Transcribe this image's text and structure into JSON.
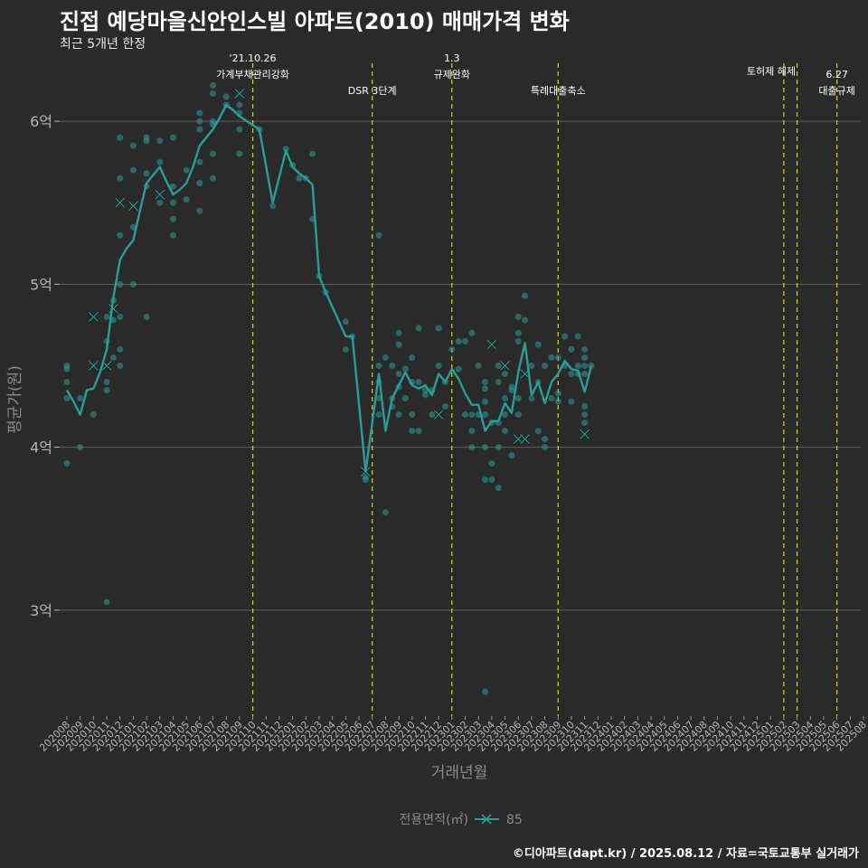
{
  "title": "진접 예당마을신안인스빌 아파트(2010) 매매가격 변화",
  "subtitle": "최근 5개년 한정",
  "caption": "©디아파트(dapt.kr) / 2025.08.12 / 자료=국토교통부 실거래가",
  "colors": {
    "background": "#2b2a2b",
    "series": "#2a9d99",
    "event_line": "#d8d800",
    "grid": "#5e5e5e",
    "axis_text": "#b5b5b5",
    "label_text": "#8a8a8a"
  },
  "chart_data": {
    "type": "line",
    "xlabel": "거래년월",
    "ylabel": "평균가(원)",
    "y_unit": "억",
    "ylim": [
      2.35,
      6.4
    ],
    "yticks": [
      3,
      4,
      5,
      6
    ],
    "ytick_labels": [
      "3억",
      "4억",
      "5억",
      "6억"
    ],
    "grid": true,
    "legend": {
      "title": "전용면적(㎡)",
      "entries": [
        "85"
      ],
      "position": "bottom"
    },
    "x": [
      "202008",
      "202009",
      "202010",
      "202011",
      "202012",
      "202101",
      "202102",
      "202103",
      "202104",
      "202105",
      "202106",
      "202107",
      "202108",
      "202109",
      "202110",
      "202111",
      "202112",
      "202201",
      "202202",
      "202203",
      "202204",
      "202205",
      "202206",
      "202207",
      "202208",
      "202209",
      "202210",
      "202211",
      "202212",
      "202301",
      "202302",
      "202303",
      "202304",
      "202305",
      "202306",
      "202307",
      "202308",
      "202309",
      "202310",
      "202311",
      "202312",
      "202401",
      "202402",
      "202403",
      "202404",
      "202405",
      "202406",
      "202407",
      "202408",
      "202409",
      "202410",
      "202411",
      "202412",
      "202501",
      "202502",
      "202503",
      "202504",
      "202505",
      "202506",
      "202507",
      "202508"
    ],
    "series": [
      {
        "name": "85",
        "average": [
          [
            "202008",
            4.35
          ],
          [
            "202008.5",
            4.28
          ],
          [
            "202009",
            4.2
          ],
          [
            "202009.5",
            4.35
          ],
          [
            "202010",
            4.36
          ],
          [
            "202010.5",
            4.46
          ],
          [
            "202011",
            4.6
          ],
          [
            "202011.5",
            4.92
          ],
          [
            "202012",
            5.15
          ],
          [
            "202012.5",
            5.22
          ],
          [
            "202101",
            5.27
          ],
          [
            "202101.5",
            5.45
          ],
          [
            "202102",
            5.62
          ],
          [
            "202102.5",
            5.67
          ],
          [
            "202103",
            5.72
          ],
          [
            "202103.5",
            5.63
          ],
          [
            "202104",
            5.55
          ],
          [
            "202104.5",
            5.58
          ],
          [
            "202105",
            5.62
          ],
          [
            "202105.5",
            5.72
          ],
          [
            "202106",
            5.85
          ],
          [
            "202106.5",
            5.9
          ],
          [
            "202107",
            5.95
          ],
          [
            "202107.5",
            6.02
          ],
          [
            "202108",
            6.1
          ],
          [
            "202108.5",
            6.07
          ],
          [
            "202109",
            6.03
          ],
          [
            "202110.5",
            5.95
          ],
          [
            "202111.5",
            5.5
          ],
          [
            "202112.5",
            5.82
          ],
          [
            "202201",
            5.72
          ],
          [
            "202201.5",
            5.68
          ],
          [
            "202202",
            5.65
          ],
          [
            "202202.5",
            5.61
          ],
          [
            "202203",
            5.05
          ],
          [
            "202203.5",
            4.95
          ],
          [
            "202205",
            4.68
          ],
          [
            "202205.5",
            4.68
          ],
          [
            "202206.5",
            3.85
          ],
          [
            "202207.5",
            4.45
          ],
          [
            "202208",
            4.1
          ],
          [
            "202208.5",
            4.3
          ],
          [
            "202209",
            4.38
          ],
          [
            "202209.5",
            4.46
          ],
          [
            "202210",
            4.38
          ],
          [
            "202210.5",
            4.36
          ],
          [
            "202211",
            4.38
          ],
          [
            "202211.5",
            4.32
          ],
          [
            "202212",
            4.45
          ],
          [
            "202212.5",
            4.4
          ],
          [
            "202301",
            4.48
          ],
          [
            "202301.5",
            4.42
          ],
          [
            "202302",
            4.33
          ],
          [
            "202302.5",
            4.26
          ],
          [
            "202303",
            4.26
          ],
          [
            "202303.5",
            4.1
          ],
          [
            "202304",
            4.16
          ],
          [
            "202304.5",
            4.16
          ],
          [
            "202305",
            4.27
          ],
          [
            "202305.5",
            4.21
          ],
          [
            "202306",
            4.46
          ],
          [
            "202306.5",
            4.64
          ],
          [
            "202307",
            4.32
          ],
          [
            "202307.5",
            4.4
          ],
          [
            "202308",
            4.27
          ],
          [
            "202308.5",
            4.4
          ],
          [
            "202309",
            4.45
          ],
          [
            "202309.5",
            4.53
          ],
          [
            "202310",
            4.48
          ],
          [
            "202310.5",
            4.47
          ],
          [
            "202311",
            4.34
          ],
          [
            "202311.5",
            4.5
          ]
        ],
        "transactions": [
          [
            "202008",
            4.5
          ],
          [
            "202008",
            4.48
          ],
          [
            "202008",
            4.4
          ],
          [
            "202008",
            4.3
          ],
          [
            "202008",
            3.9
          ],
          [
            "202009",
            4.3
          ],
          [
            "202009",
            4.0
          ],
          [
            "202010",
            4.5,
            "x"
          ],
          [
            "202010",
            4.8,
            "x"
          ],
          [
            "202010",
            4.2
          ],
          [
            "202011",
            4.5,
            "x"
          ],
          [
            "202011",
            4.35
          ],
          [
            "202011",
            4.4
          ],
          [
            "202011",
            3.05
          ],
          [
            "202011",
            4.65
          ],
          [
            "202011",
            4.8
          ],
          [
            "202011.5",
            4.85,
            "x"
          ],
          [
            "202011.5",
            4.9
          ],
          [
            "202011.5",
            4.55
          ],
          [
            "202011.5",
            4.78
          ],
          [
            "202012",
            4.5
          ],
          [
            "202012",
            4.6
          ],
          [
            "202012",
            4.8
          ],
          [
            "202012",
            5.0
          ],
          [
            "202012",
            5.3
          ],
          [
            "202012",
            5.5,
            "x"
          ],
          [
            "202012",
            5.65
          ],
          [
            "202012",
            5.9
          ],
          [
            "202101",
            5.0
          ],
          [
            "202101",
            5.35
          ],
          [
            "202101",
            5.48,
            "x"
          ],
          [
            "202101",
            5.7
          ],
          [
            "202101",
            5.85
          ],
          [
            "202102",
            4.8
          ],
          [
            "202102",
            5.6
          ],
          [
            "202102",
            5.68
          ],
          [
            "202102",
            5.9
          ],
          [
            "202102",
            5.88
          ],
          [
            "202103",
            5.55,
            "x"
          ],
          [
            "202103",
            5.5
          ],
          [
            "202103",
            5.75
          ],
          [
            "202103",
            5.88
          ],
          [
            "202104",
            5.3
          ],
          [
            "202104",
            5.4
          ],
          [
            "202104",
            5.5
          ],
          [
            "202104",
            5.6
          ],
          [
            "202104",
            5.9
          ],
          [
            "202105",
            5.7
          ],
          [
            "202105",
            5.52
          ],
          [
            "202106",
            5.45
          ],
          [
            "202106",
            5.62
          ],
          [
            "202106",
            5.75
          ],
          [
            "202106",
            5.95
          ],
          [
            "202106",
            6.0
          ],
          [
            "202106",
            6.05
          ],
          [
            "202107",
            5.65
          ],
          [
            "202107",
            5.8
          ],
          [
            "202107",
            5.98
          ],
          [
            "202107",
            6.0
          ],
          [
            "202107",
            6.17
          ],
          [
            "202107",
            6.22
          ],
          [
            "202108",
            6.1
          ],
          [
            "202108",
            6.15
          ],
          [
            "202109",
            5.8
          ],
          [
            "202109",
            5.95
          ],
          [
            "202109",
            6.05
          ],
          [
            "202109",
            6.1
          ],
          [
            "202109",
            6.17,
            "x"
          ],
          [
            "202110.5",
            5.95
          ],
          [
            "202111.5",
            5.48
          ],
          [
            "202112.5",
            5.83
          ],
          [
            "202201",
            5.73
          ],
          [
            "202201.5",
            5.65
          ],
          [
            "202202",
            5.65
          ],
          [
            "202202.5",
            5.8
          ],
          [
            "202202.5",
            5.4
          ],
          [
            "202203",
            5.05
          ],
          [
            "202203.5",
            4.95
          ],
          [
            "202205",
            4.77
          ],
          [
            "202205",
            4.6
          ],
          [
            "202205.5",
            4.68
          ],
          [
            "202206.5",
            3.8
          ],
          [
            "202206.5",
            3.82
          ],
          [
            "202206.5",
            3.85,
            "x"
          ],
          [
            "202207.5",
            4.5
          ],
          [
            "202207.5",
            5.3
          ],
          [
            "202207.5",
            4.2
          ],
          [
            "202207.5",
            4.4
          ],
          [
            "202207.5",
            4.3
          ],
          [
            "202208",
            4.55
          ],
          [
            "202208",
            3.6
          ],
          [
            "202208.5",
            4.5
          ],
          [
            "202208.5",
            4.3
          ],
          [
            "202208.5",
            4.25
          ],
          [
            "202209",
            4.45
          ],
          [
            "202209",
            4.37
          ],
          [
            "202209",
            4.2
          ],
          [
            "202209",
            4.63
          ],
          [
            "202209",
            4.7
          ],
          [
            "202209.5",
            4.48
          ],
          [
            "202209.5",
            4.3
          ],
          [
            "202210",
            4.55
          ],
          [
            "202210",
            4.4
          ],
          [
            "202210",
            4.2
          ],
          [
            "202210",
            4.1
          ],
          [
            "202210.5",
            4.4
          ],
          [
            "202210.5",
            4.73
          ],
          [
            "202210.5",
            4.1
          ],
          [
            "202211",
            4.35
          ],
          [
            "202211",
            4.32
          ],
          [
            "202211.5",
            4.35
          ],
          [
            "202211.5",
            4.2
          ],
          [
            "202212",
            4.5
          ],
          [
            "202212",
            4.73
          ],
          [
            "202212",
            4.2,
            "x"
          ],
          [
            "202212.5",
            4.4
          ],
          [
            "202212.5",
            4.25
          ],
          [
            "202301",
            4.6
          ],
          [
            "202301.5",
            4.48
          ],
          [
            "202301.5",
            4.65
          ],
          [
            "202302",
            4.65
          ],
          [
            "202302",
            4.2
          ],
          [
            "202302.5",
            4.7
          ],
          [
            "202302.5",
            4.1
          ],
          [
            "202302.5",
            4.0
          ],
          [
            "202302.5",
            4.2
          ],
          [
            "202303",
            4.5
          ],
          [
            "202303",
            4.2
          ],
          [
            "202303.5",
            4.4
          ],
          [
            "202303.5",
            4.36
          ],
          [
            "202303.5",
            4.28
          ],
          [
            "202303.5",
            4.2
          ],
          [
            "202303.5",
            4.0
          ],
          [
            "202303.5",
            3.8
          ],
          [
            "202303.5",
            2.5
          ],
          [
            "202304",
            4.63,
            "x"
          ],
          [
            "202304",
            4.15
          ],
          [
            "202304",
            3.8
          ],
          [
            "202304",
            3.9
          ],
          [
            "202304.5",
            4.5
          ],
          [
            "202304.5",
            4.4
          ],
          [
            "202304.5",
            4.15
          ],
          [
            "202304.5",
            4.0
          ],
          [
            "202304.5",
            3.75
          ],
          [
            "202305",
            4.5,
            "x"
          ],
          [
            "202305",
            4.45
          ],
          [
            "202305",
            4.3
          ],
          [
            "202305",
            4.2
          ],
          [
            "202305",
            4.1
          ],
          [
            "202305.5",
            4.37
          ],
          [
            "202305.5",
            4.35
          ],
          [
            "202305.5",
            3.95
          ],
          [
            "202306",
            4.8
          ],
          [
            "202306",
            4.7
          ],
          [
            "202306",
            4.65
          ],
          [
            "202306",
            4.3
          ],
          [
            "202306",
            4.2
          ],
          [
            "202306",
            4.05,
            "x"
          ],
          [
            "202306.5",
            4.05,
            "x"
          ],
          [
            "202306.5",
            4.45,
            "x"
          ],
          [
            "202306.5",
            4.93
          ],
          [
            "202306.5",
            4.78
          ],
          [
            "202307",
            4.5
          ],
          [
            "202307",
            4.3
          ],
          [
            "202307.5",
            4.4
          ],
          [
            "202307.5",
            4.63
          ],
          [
            "202307.5",
            4.1
          ],
          [
            "202308",
            4.5
          ],
          [
            "202308",
            4.05
          ],
          [
            "202308",
            4.0
          ],
          [
            "202308.5",
            4.55
          ],
          [
            "202308.5",
            4.3
          ],
          [
            "202309",
            4.55
          ],
          [
            "202309",
            4.33
          ],
          [
            "202309",
            4.28
          ],
          [
            "202309.5",
            4.68
          ],
          [
            "202309.5",
            4.5
          ],
          [
            "202310",
            4.6
          ],
          [
            "202310",
            4.45
          ],
          [
            "202310",
            4.28
          ],
          [
            "202310.5",
            4.68
          ],
          [
            "202310.5",
            4.5
          ],
          [
            "202310.5",
            4.45
          ],
          [
            "202311",
            4.55
          ],
          [
            "202311",
            4.5
          ],
          [
            "202311",
            4.45
          ],
          [
            "202311",
            4.25
          ],
          [
            "202311",
            4.2
          ],
          [
            "202311",
            4.15
          ],
          [
            "202311",
            4.08,
            "x"
          ],
          [
            "202311",
            4.6
          ],
          [
            "202311.5",
            4.5
          ]
        ]
      }
    ],
    "events": [
      {
        "x": "202110",
        "label": [
          "'21.10.26",
          "가계부채관리강화"
        ],
        "label_y": 6.35
      },
      {
        "x": "202207",
        "label": [
          "DSR 3단계"
        ],
        "label_y": 6.2
      },
      {
        "x": "202301",
        "label": [
          "1.3",
          "규제완화"
        ],
        "label_y": 6.35
      },
      {
        "x": "202309",
        "label": [
          "특례대출축소"
        ],
        "label_y": 6.2
      },
      {
        "x": "202502",
        "label": [
          "토허제 해제"
        ],
        "label_y": 6.32
      },
      {
        "x": "202503",
        "label": [],
        "label_y": 0
      },
      {
        "x": "202506",
        "label": [
          "6.27",
          "대출규제"
        ],
        "label_y": 6.25
      }
    ]
  }
}
